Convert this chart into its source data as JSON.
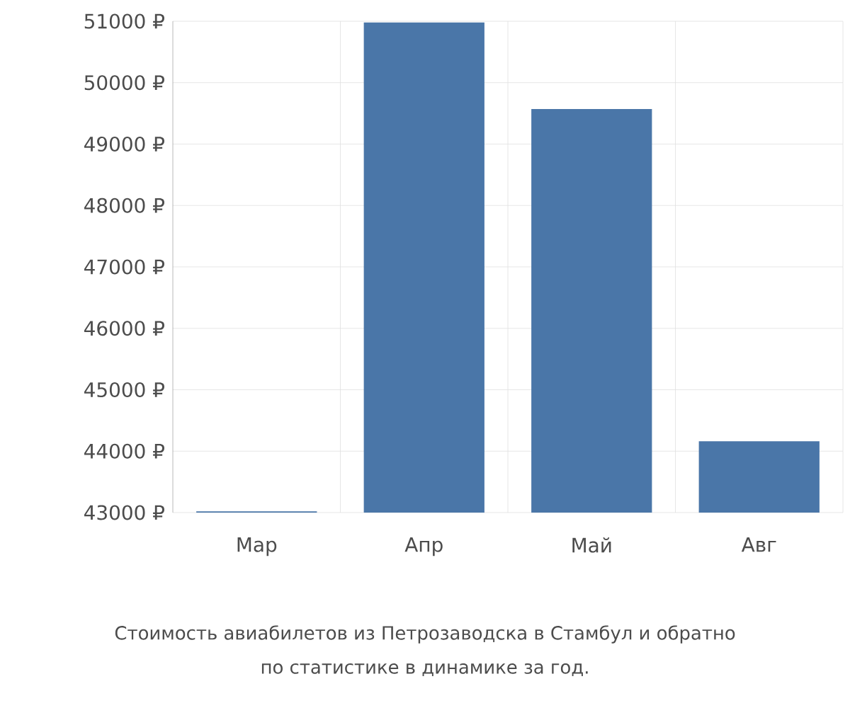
{
  "chart_data": {
    "type": "bar",
    "title": "Стоимость авиабилетов из Петрозаводска в Стамбул и обратно",
    "subtitle": "по статистике в динамике за год.",
    "categories": [
      "Мар",
      "Апр",
      "Май",
      "Авг"
    ],
    "values": [
      43020,
      50980,
      49570,
      44160
    ],
    "color": "#4a76a8",
    "ylim": [
      43000,
      51000
    ],
    "yticks": [
      {
        "value": 43000,
        "label": "43000 ₽"
      },
      {
        "value": 44000,
        "label": "44000 ₽"
      },
      {
        "value": 45000,
        "label": "45000 ₽"
      },
      {
        "value": 46000,
        "label": "46000 ₽"
      },
      {
        "value": 47000,
        "label": "47000 ₽"
      },
      {
        "value": 48000,
        "label": "48000 ₽"
      },
      {
        "value": 49000,
        "label": "49000 ₽"
      },
      {
        "value": 50000,
        "label": "50000 ₽"
      },
      {
        "value": 51000,
        "label": "51000 ₽"
      }
    ],
    "grid": true
  }
}
